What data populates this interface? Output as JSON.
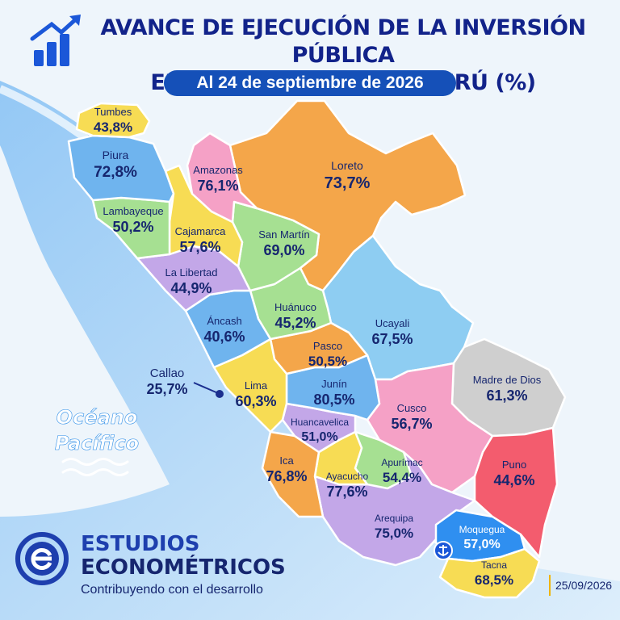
{
  "header": {
    "title_line1": "AVANCE DE EJECUCIÓN DE LA INVERSIÓN PÚBLICA",
    "title_line2": "EN LAS REGIONES DEL PERÚ (%)",
    "date_label": "Al 24 de septiembre de 2026"
  },
  "ocean_label": [
    "Océano",
    "Pacífico"
  ],
  "regions": [
    {
      "name": "Tumbes",
      "value": "43,8%",
      "color": "#f7dc54"
    },
    {
      "name": "Piura",
      "value": "72,8%",
      "color": "#6fb4ee"
    },
    {
      "name": "Lambayeque",
      "value": "50,2%",
      "color": "#a6e092"
    },
    {
      "name": "Amazonas",
      "value": "76,1%",
      "color": "#f5a1c6"
    },
    {
      "name": "Cajamarca",
      "value": "57,6%",
      "color": "#f7dc54"
    },
    {
      "name": "Loreto",
      "value": "73,7%",
      "color": "#f4a64a"
    },
    {
      "name": "San Martín",
      "value": "69,0%",
      "color": "#a6e092"
    },
    {
      "name": "La Libertad",
      "value": "44,9%",
      "color": "#c3a7e8"
    },
    {
      "name": "Áncash",
      "value": "40,6%",
      "color": "#6fb4ee"
    },
    {
      "name": "Huánuco",
      "value": "45,2%",
      "color": "#a6e092"
    },
    {
      "name": "Ucayali",
      "value": "67,5%",
      "color": "#8ecdf2"
    },
    {
      "name": "Pasco",
      "value": "50,5%",
      "color": "#f4a64a"
    },
    {
      "name": "Lima",
      "value": "60,3%",
      "color": "#f7dc54"
    },
    {
      "name": "Junín",
      "value": "80,5%",
      "color": "#6fb4ee"
    },
    {
      "name": "Madre de Dios",
      "value": "61,3%",
      "color": "#cfcfcf"
    },
    {
      "name": "Cusco",
      "value": "56,7%",
      "color": "#f5a1c6"
    },
    {
      "name": "Huancavelica",
      "value": "51,0%",
      "color": "#c3a7e8"
    },
    {
      "name": "Ica",
      "value": "76,8%",
      "color": "#f4a64a"
    },
    {
      "name": "Ayacucho",
      "value": "77,6%",
      "color": "#f7dc54"
    },
    {
      "name": "Apurímac",
      "value": "54,4%",
      "color": "#a6e092"
    },
    {
      "name": "Puno",
      "value": "44,6%",
      "color": "#f35c6e"
    },
    {
      "name": "Arequipa",
      "value": "75,0%",
      "color": "#c3a7e8"
    },
    {
      "name": "Moquegua",
      "value": "57,0%",
      "color": "#2f8ff0"
    },
    {
      "name": "Tacna",
      "value": "68,5%",
      "color": "#f7dc54"
    },
    {
      "name": "Callao",
      "value": "25,7%",
      "color": "#1b2f8f"
    }
  ],
  "logo": {
    "brand_line1": "ESTUDIOS",
    "brand_line2": "ECONOMÉTRICOS",
    "tagline": "Contribuyendo con el desarrollo"
  },
  "footer_date": "25/09/2026",
  "colors": {
    "title": "#12238a",
    "pill": "#1550b8",
    "ocean": "#2d8ee8",
    "text": "#16266f"
  },
  "icons": [
    "bar-chart-up-icon",
    "anchor-icon",
    "logo-e-icon",
    "waves-icon"
  ]
}
